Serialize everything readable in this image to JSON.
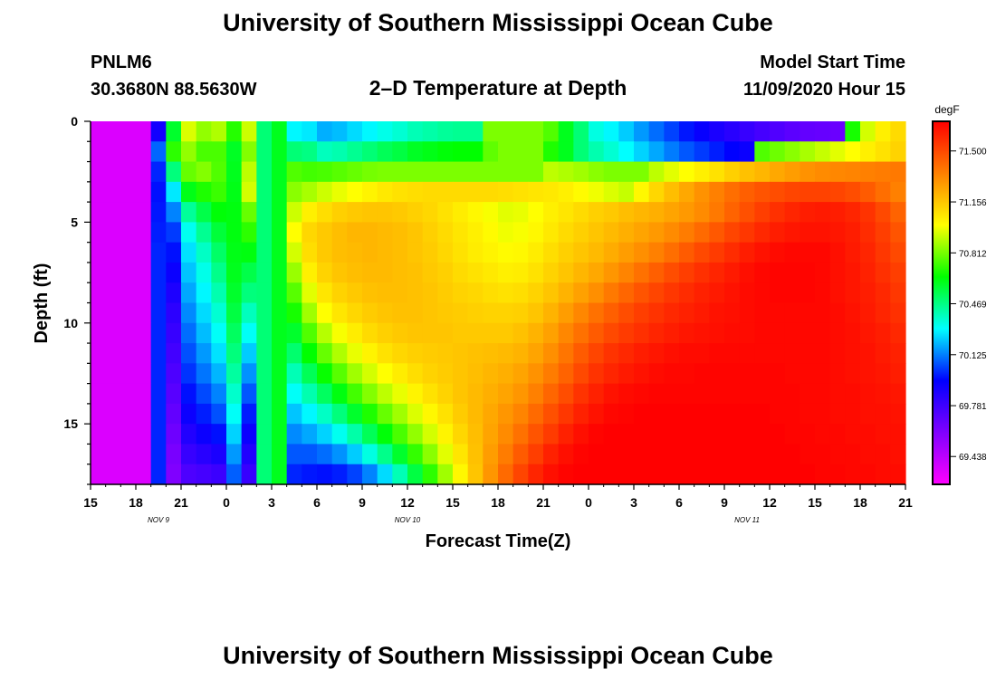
{
  "header": {
    "title": "University of Southern Mississippi Ocean Cube",
    "station_id": "PNLM6",
    "station_coords": "30.3680N 88.5630W",
    "plot_title": "2–D Temperature at Depth",
    "model_start_label": "Model Start Time",
    "model_start_value": "11/09/2020 Hour 15"
  },
  "footer": {
    "title": "University of Southern Mississippi Ocean Cube"
  },
  "colors": {
    "background": "#ffffff",
    "text": "#000000",
    "colormap": [
      "#ff00ff",
      "#8000ff",
      "#0000ff",
      "#00ffff",
      "#00ff00",
      "#ffff00",
      "#ff8000",
      "#ff0000"
    ]
  },
  "chart_data": {
    "type": "heatmap",
    "title": "2–D Temperature at Depth",
    "xlabel": "Forecast Time(Z)",
    "ylabel": "Depth (ft)",
    "x_range_hours": [
      0,
      54
    ],
    "y_range_ft": [
      0,
      18
    ],
    "x_ticks": [
      {
        "h": 0,
        "label": "15"
      },
      {
        "h": 3,
        "label": "18"
      },
      {
        "h": 6,
        "label": "21"
      },
      {
        "h": 9,
        "label": "0"
      },
      {
        "h": 12,
        "label": "3"
      },
      {
        "h": 15,
        "label": "6"
      },
      {
        "h": 18,
        "label": "9"
      },
      {
        "h": 21,
        "label": "12"
      },
      {
        "h": 24,
        "label": "15"
      },
      {
        "h": 27,
        "label": "18"
      },
      {
        "h": 30,
        "label": "21"
      },
      {
        "h": 33,
        "label": "0"
      },
      {
        "h": 36,
        "label": "3"
      },
      {
        "h": 39,
        "label": "6"
      },
      {
        "h": 42,
        "label": "9"
      },
      {
        "h": 45,
        "label": "12"
      },
      {
        "h": 48,
        "label": "15"
      },
      {
        "h": 51,
        "label": "18"
      },
      {
        "h": 54,
        "label": "21"
      }
    ],
    "date_labels": [
      {
        "h": 4.5,
        "label": "NOV  9"
      },
      {
        "h": 21,
        "label": "NOV  10"
      },
      {
        "h": 43.5,
        "label": "NOV  11"
      }
    ],
    "y_ticks": [
      {
        "d": 0,
        "label": "0"
      },
      {
        "d": 5,
        "label": "5"
      },
      {
        "d": 10,
        "label": "10"
      },
      {
        "d": 15,
        "label": "15"
      }
    ],
    "colorbar": {
      "unit": "degF",
      "min": 69.25,
      "max": 71.7,
      "tick_labels": [
        {
          "v": 71.5,
          "label": "71.500"
        },
        {
          "v": 71.156,
          "label": "71.156"
        },
        {
          "v": 70.812,
          "label": "70.812"
        },
        {
          "v": 70.469,
          "label": "70.469"
        },
        {
          "v": 70.125,
          "label": "70.125"
        },
        {
          "v": 69.781,
          "label": "69.781"
        },
        {
          "v": 69.438,
          "label": "69.438"
        }
      ]
    },
    "grid_cols": 54,
    "grid_rows": 18,
    "temperature_degF": [
      [
        69.35,
        69.35,
        69.35,
        69.35,
        69.9,
        70.59,
        70.95,
        70.85,
        70.89,
        70.7,
        70.93,
        70.49,
        70.61,
        70.29,
        70.27,
        70.19,
        70.21,
        70.25,
        70.29,
        70.33,
        70.36,
        70.4,
        70.42,
        70.44,
        70.45,
        70.45,
        70.82,
        70.82,
        70.82,
        70.82,
        70.76,
        70.61,
        70.49,
        70.34,
        70.29,
        70.23,
        70.16,
        70.1,
        70.04,
        69.98,
        69.93,
        69.88,
        69.84,
        69.8,
        69.76,
        69.73,
        69.7,
        69.68,
        69.67,
        69.66,
        70.68,
        70.94,
        71.04,
        71.1
      ],
      [
        69.35,
        69.35,
        69.35,
        69.35,
        70.09,
        70.71,
        70.85,
        70.75,
        70.75,
        70.6,
        70.83,
        70.49,
        70.61,
        70.49,
        70.47,
        70.39,
        70.41,
        70.45,
        70.49,
        70.53,
        70.56,
        70.6,
        70.62,
        70.64,
        70.65,
        70.65,
        70.78,
        70.82,
        70.82,
        70.82,
        70.69,
        70.61,
        70.49,
        70.41,
        70.36,
        70.3,
        70.24,
        70.18,
        70.12,
        70.07,
        70.03,
        69.99,
        69.95,
        69.92,
        70.76,
        70.8,
        70.84,
        70.88,
        70.92,
        70.96,
        71.0,
        71.04,
        71.08,
        71.12
      ],
      [
        69.35,
        69.35,
        69.35,
        69.35,
        70.0,
        70.48,
        70.79,
        70.83,
        70.76,
        70.61,
        70.91,
        70.49,
        70.61,
        70.76,
        70.74,
        70.75,
        70.77,
        70.79,
        70.81,
        70.82,
        70.82,
        70.82,
        70.82,
        70.82,
        70.82,
        70.82,
        70.82,
        70.82,
        70.82,
        70.82,
        70.91,
        70.89,
        70.87,
        70.84,
        70.82,
        70.82,
        70.82,
        70.91,
        70.96,
        71.0,
        71.04,
        71.08,
        71.13,
        71.17,
        71.2,
        71.24,
        71.27,
        71.3,
        71.32,
        71.33,
        71.34,
        71.35,
        71.36,
        71.37
      ],
      [
        69.35,
        69.35,
        69.35,
        69.35,
        69.97,
        70.27,
        70.62,
        70.69,
        70.73,
        70.62,
        70.94,
        70.49,
        70.61,
        70.84,
        70.88,
        70.93,
        70.97,
        71.0,
        71.03,
        71.06,
        71.08,
        71.09,
        71.1,
        71.1,
        71.1,
        71.1,
        71.1,
        71.09,
        71.08,
        71.07,
        71.06,
        71.04,
        71.01,
        70.98,
        70.95,
        70.92,
        71.02,
        71.11,
        71.18,
        71.24,
        71.3,
        71.35,
        71.4,
        71.44,
        71.47,
        71.49,
        71.51,
        71.52,
        71.52,
        71.51,
        71.49,
        71.45,
        71.4,
        71.35
      ],
      [
        69.35,
        69.35,
        69.35,
        69.35,
        69.98,
        70.13,
        70.44,
        70.55,
        70.64,
        70.63,
        70.79,
        70.49,
        70.61,
        70.93,
        71.04,
        71.09,
        71.13,
        71.15,
        71.16,
        71.16,
        71.15,
        71.13,
        71.11,
        71.08,
        71.05,
        71.02,
        70.99,
        70.96,
        70.97,
        71.0,
        71.04,
        71.07,
        71.1,
        71.13,
        71.15,
        71.18,
        71.2,
        71.22,
        71.25,
        71.28,
        71.32,
        71.37,
        71.43,
        71.48,
        71.53,
        71.57,
        71.6,
        71.62,
        71.63,
        71.62,
        71.6,
        71.56,
        71.5,
        71.43
      ],
      [
        69.35,
        69.35,
        69.35,
        69.35,
        69.99,
        70.03,
        70.32,
        70.45,
        70.57,
        70.63,
        70.71,
        70.49,
        70.61,
        71.0,
        71.11,
        71.15,
        71.18,
        71.2,
        71.2,
        71.19,
        71.18,
        71.16,
        71.13,
        71.1,
        71.07,
        71.04,
        71.01,
        70.98,
        70.99,
        71.02,
        71.06,
        71.1,
        71.13,
        71.16,
        71.19,
        71.22,
        71.25,
        71.28,
        71.32,
        71.36,
        71.41,
        71.46,
        71.51,
        71.55,
        71.59,
        71.62,
        71.64,
        71.65,
        71.65,
        71.64,
        71.62,
        71.58,
        71.53,
        71.47
      ],
      [
        69.35,
        69.35,
        69.35,
        69.35,
        70.0,
        69.97,
        70.26,
        70.38,
        70.51,
        70.62,
        70.63,
        70.49,
        70.61,
        70.94,
        71.09,
        71.15,
        71.18,
        71.19,
        71.2,
        71.19,
        71.18,
        71.16,
        71.14,
        71.11,
        71.08,
        71.05,
        71.03,
        71.01,
        71.02,
        71.05,
        71.09,
        71.13,
        71.16,
        71.19,
        71.23,
        71.27,
        71.31,
        71.35,
        71.4,
        71.45,
        71.5,
        71.54,
        71.58,
        71.62,
        71.65,
        71.67,
        71.68,
        71.68,
        71.68,
        71.66,
        71.63,
        71.6,
        71.55,
        71.5
      ],
      [
        69.35,
        69.35,
        69.35,
        69.35,
        70.0,
        69.92,
        70.22,
        70.33,
        70.46,
        70.61,
        70.55,
        70.49,
        70.61,
        70.86,
        71.04,
        71.12,
        71.16,
        71.18,
        71.19,
        71.19,
        71.18,
        71.17,
        71.15,
        71.13,
        71.1,
        71.08,
        71.06,
        71.04,
        71.05,
        71.08,
        71.12,
        71.16,
        71.2,
        71.24,
        71.29,
        71.34,
        71.39,
        71.44,
        71.49,
        71.53,
        71.57,
        71.6,
        71.63,
        71.66,
        71.68,
        71.69,
        71.69,
        71.69,
        71.68,
        71.66,
        71.64,
        71.61,
        71.57,
        71.53
      ],
      [
        69.35,
        69.35,
        69.35,
        69.35,
        70.0,
        69.87,
        70.18,
        70.29,
        70.41,
        70.59,
        70.48,
        70.49,
        70.61,
        70.77,
        70.96,
        71.07,
        71.12,
        71.15,
        71.17,
        71.18,
        71.18,
        71.17,
        71.16,
        71.14,
        71.12,
        71.11,
        71.09,
        71.08,
        71.09,
        71.12,
        71.16,
        71.21,
        71.26,
        71.31,
        71.37,
        71.42,
        71.47,
        71.51,
        71.55,
        71.58,
        71.61,
        71.63,
        71.65,
        71.67,
        71.68,
        71.69,
        71.69,
        71.69,
        71.68,
        71.66,
        71.64,
        71.62,
        71.59,
        71.55
      ],
      [
        69.35,
        69.35,
        69.35,
        69.35,
        70.0,
        69.83,
        70.14,
        70.25,
        70.36,
        70.56,
        70.39,
        70.49,
        70.61,
        70.68,
        70.87,
        71.0,
        71.07,
        71.11,
        71.14,
        71.16,
        71.17,
        71.17,
        71.16,
        71.15,
        71.14,
        71.13,
        71.12,
        71.12,
        71.13,
        71.16,
        71.21,
        71.27,
        71.33,
        71.39,
        71.44,
        71.49,
        71.53,
        71.56,
        71.59,
        71.61,
        71.63,
        71.65,
        71.66,
        71.67,
        71.68,
        71.68,
        71.68,
        71.68,
        71.68,
        71.67,
        71.65,
        71.63,
        71.6,
        71.57
      ],
      [
        69.35,
        69.35,
        69.35,
        69.35,
        70.0,
        69.8,
        70.1,
        70.21,
        70.31,
        70.52,
        70.31,
        70.49,
        70.61,
        70.59,
        70.76,
        70.9,
        70.99,
        71.05,
        71.1,
        71.13,
        71.15,
        71.16,
        71.16,
        71.16,
        71.15,
        71.15,
        71.15,
        71.15,
        71.17,
        71.21,
        71.26,
        71.33,
        71.39,
        71.45,
        71.5,
        71.54,
        71.57,
        71.6,
        71.62,
        71.64,
        71.65,
        71.66,
        71.67,
        71.67,
        71.68,
        71.68,
        71.68,
        71.68,
        71.68,
        71.67,
        71.66,
        71.64,
        71.62,
        71.59
      ],
      [
        69.35,
        69.35,
        69.35,
        69.35,
        70.0,
        69.77,
        70.06,
        70.16,
        70.26,
        70.48,
        70.23,
        70.49,
        70.61,
        70.5,
        70.65,
        70.79,
        70.89,
        70.97,
        71.03,
        71.08,
        71.11,
        71.13,
        71.14,
        71.15,
        71.16,
        71.17,
        71.18,
        71.19,
        71.21,
        71.25,
        71.31,
        71.38,
        71.45,
        71.51,
        71.56,
        71.59,
        71.62,
        71.64,
        71.66,
        71.67,
        71.67,
        71.68,
        71.68,
        71.68,
        71.68,
        71.68,
        71.68,
        71.68,
        71.68,
        71.67,
        71.66,
        71.65,
        71.63,
        71.61
      ],
      [
        69.35,
        69.35,
        69.35,
        69.35,
        70.0,
        69.74,
        70.02,
        70.11,
        70.2,
        70.43,
        70.15,
        70.49,
        70.61,
        70.4,
        70.53,
        70.66,
        70.77,
        70.87,
        70.94,
        71.0,
        71.05,
        71.09,
        71.12,
        71.14,
        71.16,
        71.18,
        71.2,
        71.22,
        71.25,
        71.3,
        71.36,
        71.43,
        71.5,
        71.56,
        71.6,
        71.63,
        71.65,
        71.67,
        71.68,
        71.68,
        71.69,
        71.69,
        71.69,
        71.69,
        71.69,
        71.69,
        71.68,
        71.68,
        71.68,
        71.67,
        71.66,
        71.65,
        71.64,
        71.62
      ],
      [
        69.35,
        69.35,
        69.35,
        69.35,
        70.0,
        69.71,
        69.97,
        70.05,
        70.13,
        70.37,
        70.07,
        70.49,
        70.61,
        70.31,
        70.41,
        70.52,
        70.63,
        70.74,
        70.83,
        70.91,
        70.97,
        71.03,
        71.08,
        71.12,
        71.16,
        71.19,
        71.22,
        71.25,
        71.29,
        71.35,
        71.42,
        71.49,
        71.56,
        71.61,
        71.65,
        71.67,
        71.68,
        71.69,
        71.69,
        71.69,
        71.69,
        71.69,
        71.69,
        71.69,
        71.69,
        71.69,
        71.69,
        71.68,
        71.68,
        71.67,
        71.67,
        71.66,
        71.65,
        71.64
      ],
      [
        69.35,
        69.35,
        69.35,
        69.35,
        70.0,
        69.68,
        69.92,
        69.99,
        70.06,
        70.31,
        69.99,
        70.49,
        70.61,
        70.22,
        70.29,
        70.38,
        70.48,
        70.59,
        70.69,
        70.79,
        70.87,
        70.95,
        71.02,
        71.08,
        71.14,
        71.19,
        71.24,
        71.29,
        71.34,
        71.41,
        71.48,
        71.55,
        71.61,
        71.65,
        71.68,
        71.69,
        71.7,
        71.7,
        71.7,
        71.7,
        71.7,
        71.7,
        71.7,
        71.7,
        71.7,
        71.69,
        71.69,
        71.68,
        71.68,
        71.67,
        71.67,
        71.66,
        71.66,
        71.65
      ],
      [
        69.35,
        69.35,
        69.35,
        69.35,
        70.0,
        69.65,
        69.86,
        69.92,
        69.97,
        70.24,
        69.92,
        70.49,
        70.61,
        70.14,
        70.18,
        70.24,
        70.32,
        70.42,
        70.53,
        70.64,
        70.75,
        70.85,
        70.94,
        71.03,
        71.11,
        71.18,
        71.25,
        71.32,
        71.39,
        71.47,
        71.54,
        71.61,
        71.66,
        71.69,
        71.7,
        71.7,
        71.7,
        71.7,
        71.7,
        71.7,
        71.7,
        71.7,
        71.7,
        71.7,
        71.7,
        71.7,
        71.69,
        71.69,
        71.68,
        71.68,
        71.67,
        71.67,
        71.66,
        71.66
      ],
      [
        69.35,
        69.35,
        69.35,
        69.35,
        70.0,
        69.62,
        69.8,
        69.84,
        69.88,
        70.16,
        69.86,
        70.49,
        70.61,
        70.07,
        70.07,
        70.1,
        70.15,
        70.23,
        70.34,
        70.46,
        70.59,
        70.72,
        70.84,
        70.96,
        71.07,
        71.17,
        71.27,
        71.36,
        71.45,
        71.53,
        71.61,
        71.66,
        71.69,
        71.7,
        71.7,
        71.7,
        71.7,
        71.7,
        71.7,
        71.7,
        71.7,
        71.7,
        71.7,
        71.7,
        71.7,
        71.7,
        71.7,
        71.69,
        71.69,
        71.68,
        71.68,
        71.67,
        71.67,
        71.66
      ],
      [
        69.35,
        69.35,
        69.35,
        69.35,
        70.0,
        69.6,
        69.74,
        69.76,
        69.79,
        70.08,
        69.8,
        70.49,
        70.61,
        70.0,
        69.98,
        69.97,
        69.99,
        70.04,
        70.13,
        70.25,
        70.4,
        70.56,
        70.71,
        70.87,
        71.02,
        71.16,
        71.29,
        71.41,
        71.51,
        71.6,
        71.66,
        71.69,
        71.7,
        71.7,
        71.7,
        71.7,
        71.7,
        71.7,
        71.7,
        71.7,
        71.7,
        71.7,
        71.7,
        71.7,
        71.7,
        71.7,
        71.7,
        71.7,
        71.69,
        71.69,
        71.68,
        71.68,
        71.67,
        71.67
      ]
    ]
  }
}
